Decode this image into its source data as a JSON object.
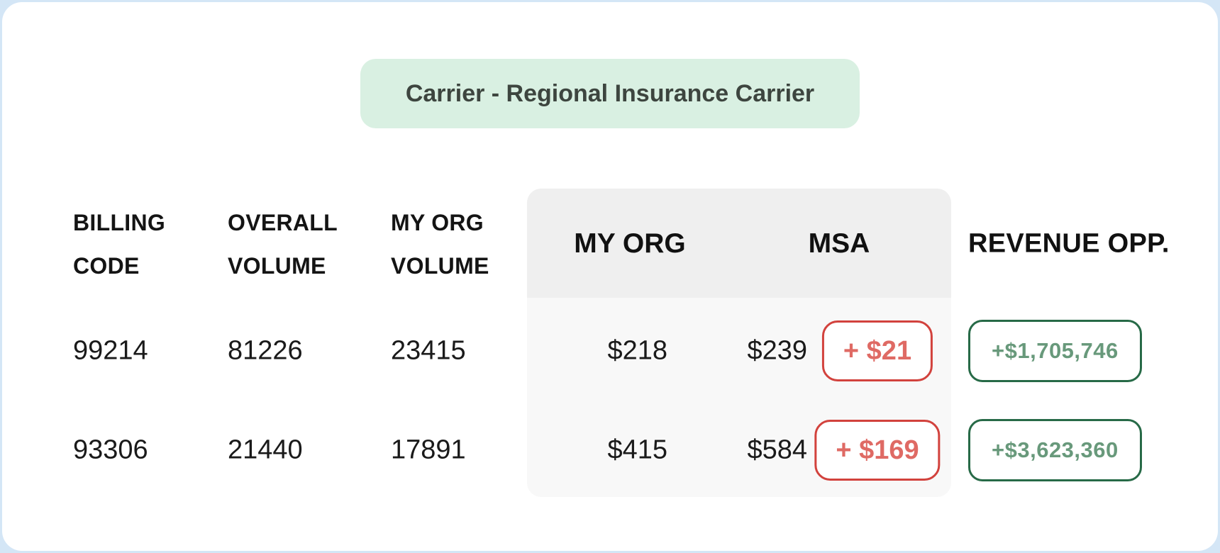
{
  "header": {
    "title": "Carrier - Regional Insurance Carrier"
  },
  "table": {
    "columns": [
      {
        "id": "billing_code",
        "line1": "BILLING",
        "line2": "CODE"
      },
      {
        "id": "overall_volume",
        "line1": "OVERALL",
        "line2": "VOLUME"
      },
      {
        "id": "my_org_volume",
        "line1": "MY ORG",
        "line2": "VOLUME"
      }
    ],
    "panel_headers": {
      "my_org": "MY ORG",
      "msa": "MSA"
    },
    "revenue_header": "REVENUE OPP.",
    "rows": [
      {
        "billing_code": "99214",
        "overall_volume": "81226",
        "my_org_volume": "23415",
        "my_org_price": "$218",
        "msa_price": "$239",
        "msa_delta": "+ $21",
        "revenue_opp": "+$1,705,746"
      },
      {
        "billing_code": "93306",
        "overall_volume": "21440",
        "my_org_volume": "17891",
        "my_org_price": "$415",
        "msa_price": "$584",
        "msa_delta": "+ $169",
        "revenue_opp": "+$3,623,360"
      }
    ]
  },
  "colors": {
    "card_border_blue": "#d4e6f6",
    "pill_green_bg": "#d9f0e2",
    "panel_header_gray": "#efefef",
    "panel_body_gray": "#f8f8f8",
    "delta_border_red": "#d2423d",
    "delta_text_red": "#df6a64",
    "revenue_border_green": "#276a47",
    "revenue_text_green": "#68997b"
  }
}
